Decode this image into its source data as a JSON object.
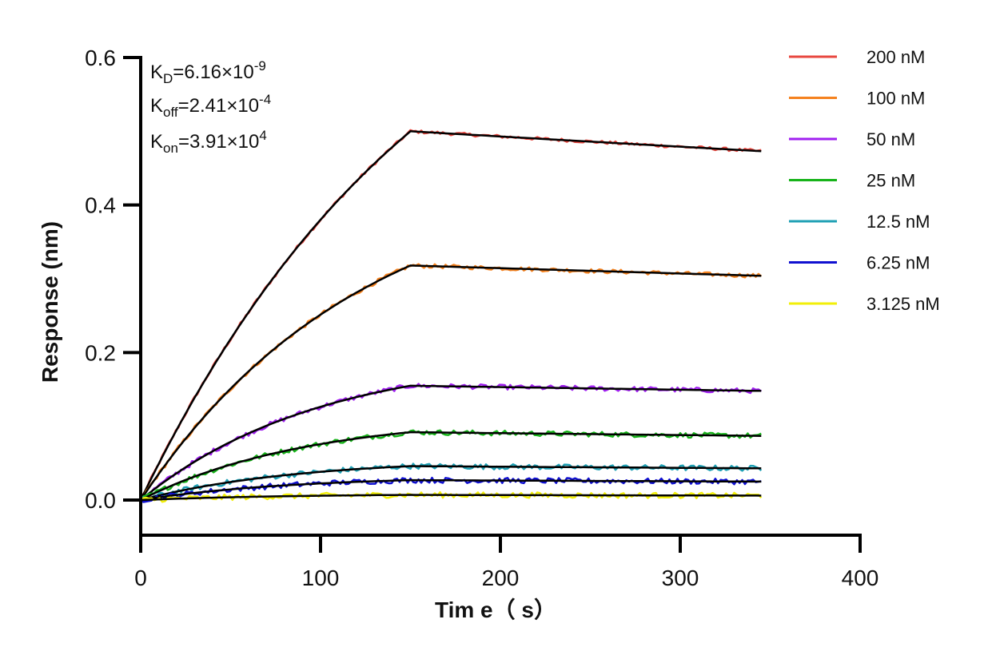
{
  "chart_data": {
    "type": "line",
    "xlabel": "Tim e（ s）",
    "ylabel": "Response (nm)",
    "xlim": [
      0,
      400
    ],
    "ylim": [
      -0.05,
      0.6
    ],
    "x_ticks": [
      "0",
      "100",
      "200",
      "300",
      "400"
    ],
    "y_ticks": [
      "0.0",
      "0.2",
      "0.4",
      "0.6"
    ],
    "association_end_s": 150,
    "end_s": 345,
    "legend_position": "right",
    "annotations": {
      "kd": {
        "label": "K",
        "sub": "D",
        "value": "=6.16×10",
        "exp": "-9"
      },
      "koff": {
        "label": "K",
        "sub": "off",
        "value": "=2.41×10",
        "exp": "-4"
      },
      "kon": {
        "label": "K",
        "sub": "on",
        "value": "=3.91×10",
        "exp": "4"
      }
    },
    "fit_color": "#000000",
    "series": [
      {
        "name": "200 nM",
        "color": "#e8473f",
        "peak": 0.5,
        "end": 0.473
      },
      {
        "name": "100 nM",
        "color": "#f5821f",
        "peak": 0.318,
        "end": 0.304
      },
      {
        "name": "50 nM",
        "color": "#a020f0",
        "peak": 0.155,
        "end": 0.148
      },
      {
        "name": "25 nM",
        "color": "#17b31a",
        "peak": 0.092,
        "end": 0.087
      },
      {
        "name": "12.5 nM",
        "color": "#1fa0b4",
        "peak": 0.046,
        "end": 0.043
      },
      {
        "name": "6.25 nM",
        "color": "#1010d0",
        "peak": 0.027,
        "end": 0.025
      },
      {
        "name": "3.125 nM",
        "color": "#f2ef08",
        "peak": 0.007,
        "end": 0.006
      }
    ]
  }
}
